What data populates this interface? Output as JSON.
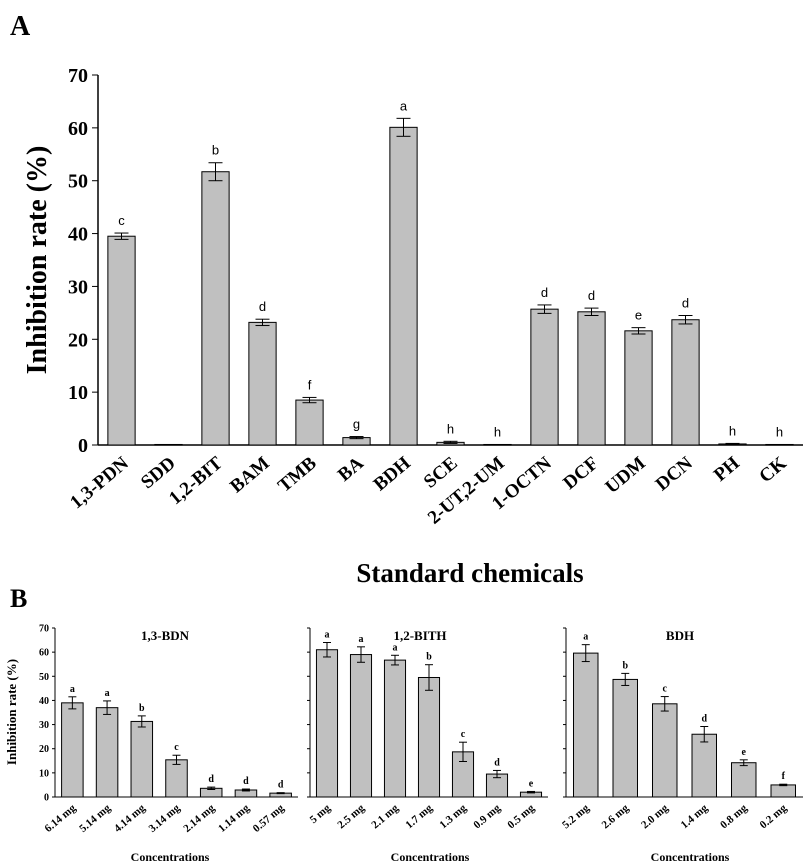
{
  "chart_data": [
    {
      "panel_label": "A",
      "type": "bar",
      "title": "",
      "xlabel": "Standard chemicals",
      "ylabel": "Inhibition rate (%)",
      "ylim": [
        0,
        70
      ],
      "yticks": [
        0,
        10,
        20,
        30,
        40,
        50,
        60,
        70
      ],
      "grid": false,
      "bar_color": "#c0c0c0",
      "categories": [
        "1,3-PDN",
        "SDD",
        "1,2-BIT",
        "BAM",
        "TMB",
        "BA",
        "BDH",
        "SCE",
        "2-UT,2-UM",
        "1-OCTN",
        "DCF",
        "UDM",
        "DCN",
        "PH",
        "CK"
      ],
      "values": [
        39.5,
        0.1,
        51.7,
        23.2,
        8.5,
        1.4,
        60.1,
        0.5,
        0.1,
        25.7,
        25.2,
        21.6,
        23.7,
        0.2,
        0.1
      ],
      "errors": [
        0.6,
        0,
        1.7,
        0.6,
        0.5,
        0.2,
        1.7,
        0.2,
        0,
        0.8,
        0.7,
        0.6,
        0.8,
        0.1,
        0
      ],
      "annotations": [
        "c",
        "",
        "b",
        "d",
        "f",
        "g",
        "a",
        "h",
        "h",
        "d",
        "d",
        "e",
        "d",
        "h",
        "h"
      ]
    },
    {
      "panel_label": "B",
      "type": "bar",
      "title": "1,3-BDN",
      "xlabel": "Concentrations",
      "ylabel": "Inhibition rate (%)",
      "ylim": [
        0,
        70
      ],
      "yticks": [
        0,
        10,
        20,
        30,
        40,
        50,
        60,
        70
      ],
      "bar_color": "#c0c0c0",
      "categories": [
        "6.14 mg",
        "5.14 mg",
        "4.14 mg",
        "3.14 mg",
        "2.14 mg",
        "1.14 mg",
        "0.57 mg"
      ],
      "values": [
        39.0,
        37.0,
        31.3,
        15.4,
        3.6,
        2.9,
        1.6
      ],
      "errors": [
        2.5,
        2.8,
        2.3,
        1.9,
        0.5,
        0.4,
        0.2
      ],
      "annotations": [
        "a",
        "a",
        "b",
        "c",
        "d",
        "d",
        "d"
      ]
    },
    {
      "type": "bar",
      "title": "1,2-BITH",
      "xlabel": "Concentrations",
      "ylim": [
        0,
        70
      ],
      "bar_color": "#c0c0c0",
      "categories": [
        "5 mg",
        "2.5 mg",
        "2.1 mg",
        "1.7 mg",
        "1.3 mg",
        "0.9 mg",
        "0.5 mg"
      ],
      "values": [
        61.0,
        59.0,
        56.7,
        49.5,
        18.7,
        9.5,
        2.0
      ],
      "errors": [
        3.0,
        3.2,
        2.0,
        5.3,
        4.0,
        1.5,
        0.3
      ],
      "annotations": [
        "a",
        "a",
        "a",
        "b",
        "c",
        "d",
        "e"
      ]
    },
    {
      "type": "bar",
      "title": "BDH",
      "xlabel": "Concentrations",
      "ylim": [
        0,
        70
      ],
      "bar_color": "#c0c0c0",
      "categories": [
        "5.2 mg",
        "2.6 mg",
        "2.0 mg",
        "1.4 mg",
        "0.8 mg",
        "0.2 mg"
      ],
      "values": [
        59.6,
        48.7,
        38.6,
        26.0,
        14.2,
        5.0
      ],
      "errors": [
        3.5,
        2.5,
        3.0,
        3.2,
        1.2,
        0.3
      ],
      "annotations": [
        "a",
        "b",
        "c",
        "d",
        "e",
        "f"
      ]
    }
  ]
}
